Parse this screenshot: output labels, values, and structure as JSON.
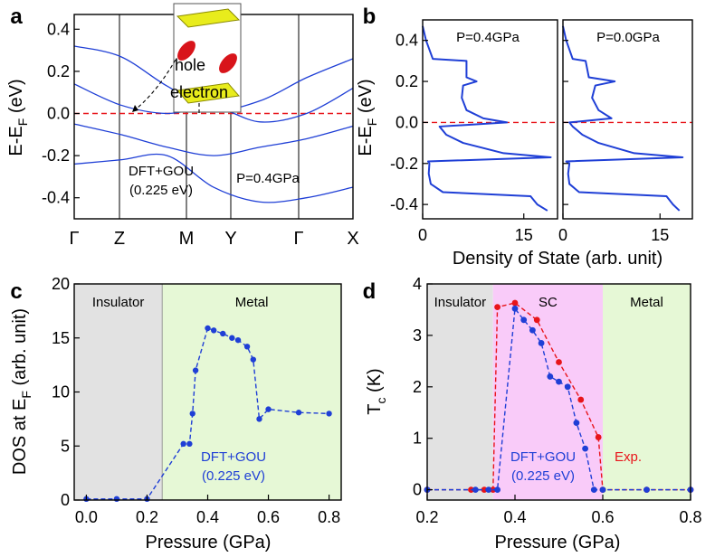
{
  "chart_data": [
    {
      "panel": "a",
      "type": "line",
      "title": "",
      "xlabel": "",
      "ylabel": "E-E_F (eV)",
      "ylabel_main": "E-E",
      "ylabel_sub": "F",
      "ylabel_unit": " (eV)",
      "ylim": [
        -0.5,
        0.47
      ],
      "yticks": [
        "0.4",
        "0.2",
        "0.0",
        "-0.2",
        "-0.4"
      ],
      "ytick_values": [
        0.4,
        0.2,
        0.0,
        -0.2,
        -0.4
      ],
      "kpoints": [
        "Γ",
        "Z",
        "M",
        "Y",
        "Γ",
        "X"
      ],
      "fermi_level": 0.0,
      "annotations": [
        "DFT+GOU",
        "(0.225 eV)",
        "P=0.4GPa"
      ],
      "inset_labels": [
        "hole",
        "electron"
      ],
      "series": [
        {
          "name": "band1",
          "values": [
            0.32,
            0.27,
            0.13,
            0.02,
            0.06,
            0.17,
            0.26
          ]
        },
        {
          "name": "band2",
          "values": [
            0.14,
            0.04,
            0.0,
            0.03,
            -0.04,
            0.0,
            0.12
          ]
        },
        {
          "name": "band3",
          "values": [
            -0.05,
            -0.1,
            -0.16,
            -0.2,
            -0.16,
            -0.12,
            -0.06
          ]
        },
        {
          "name": "band4",
          "values": [
            -0.24,
            -0.22,
            -0.2,
            -0.35,
            -0.42,
            -0.4,
            -0.35
          ]
        }
      ]
    },
    {
      "panel": "b",
      "type": "line",
      "xlabel": "Density of State (arb. unit)",
      "ylabel": "E-E_F (eV)",
      "ylabel_main": "E-E",
      "ylabel_sub": "F",
      "ylabel_unit": " (eV)",
      "xlim": [
        0,
        20
      ],
      "ylim": [
        -0.47,
        0.5
      ],
      "xticks": [
        "0",
        "15"
      ],
      "xtick_values": [
        0,
        15
      ],
      "yticks": [
        "0.4",
        "0.2",
        "0.0",
        "-0.2",
        "-0.4"
      ],
      "ytick_values": [
        0.4,
        0.2,
        0.0,
        -0.2,
        -0.4
      ],
      "fermi_level": 0.0,
      "subpanels": [
        {
          "label": "P=0.4GPa",
          "energy": [
            0.47,
            0.4,
            0.31,
            0.3,
            0.22,
            0.2,
            0.18,
            0.12,
            0.06,
            0.02,
            0.0,
            -0.02,
            -0.06,
            -0.1,
            -0.15,
            -0.17,
            -0.19,
            -0.2,
            -0.25,
            -0.3,
            -0.34,
            -0.36,
            -0.4,
            -0.43
          ],
          "dos": [
            0.0,
            0.5,
            1.5,
            6.5,
            6.5,
            8.0,
            6.0,
            5.8,
            6.5,
            9.0,
            12.5,
            2.5,
            3.5,
            6.0,
            12.0,
            19.0,
            0.8,
            1.0,
            0.9,
            1.2,
            3.0,
            16.0,
            17.0,
            18.5
          ]
        },
        {
          "label": "P=0.0GPa",
          "energy": [
            0.47,
            0.4,
            0.31,
            0.3,
            0.22,
            0.2,
            0.18,
            0.12,
            0.06,
            0.02,
            0.0,
            -0.02,
            -0.06,
            -0.1,
            -0.15,
            -0.17,
            -0.19,
            -0.2,
            -0.25,
            -0.3,
            -0.34,
            -0.36,
            -0.4,
            -0.43
          ],
          "dos": [
            0.0,
            0.5,
            1.5,
            3.5,
            4.0,
            8.0,
            5.0,
            4.5,
            5.5,
            7.5,
            1.0,
            1.5,
            3.0,
            5.5,
            11.0,
            18.5,
            0.5,
            1.0,
            0.8,
            1.0,
            2.5,
            16.0,
            17.0,
            18.0
          ]
        }
      ]
    },
    {
      "panel": "c",
      "type": "line",
      "xlabel": "Pressure (GPa)",
      "ylabel": "DOS at E_F (arb. unit)",
      "ylabel_main": "DOS at E",
      "ylabel_sub": "F",
      "ylabel_unit": " (arb. unit)",
      "xlim": [
        -0.04,
        0.84
      ],
      "ylim": [
        0,
        20
      ],
      "xticks": [
        "0.0",
        "0.2",
        "0.4",
        "0.6",
        "0.8"
      ],
      "xtick_values": [
        0.0,
        0.2,
        0.4,
        0.6,
        0.8
      ],
      "yticks": [
        "0",
        "5",
        "10",
        "15",
        "20"
      ],
      "ytick_values": [
        0,
        5,
        10,
        15,
        20
      ],
      "regions": [
        {
          "label": "Insulator",
          "from": -0.04,
          "to": 0.25,
          "color": "#e2e2e2"
        },
        {
          "label": "Metal",
          "from": 0.25,
          "to": 0.84,
          "color": "#e6f8d6"
        }
      ],
      "annotations": [
        "DFT+GOU",
        "(0.225 eV)"
      ],
      "series": [
        {
          "name": "DFT+GOU (0.225 eV)",
          "color": "#1f3fd6",
          "x": [
            0.0,
            0.1,
            0.2,
            0.32,
            0.34,
            0.35,
            0.36,
            0.4,
            0.42,
            0.45,
            0.48,
            0.5,
            0.53,
            0.55,
            0.57,
            0.6,
            0.7,
            0.8
          ],
          "y": [
            0.1,
            0.1,
            0.1,
            5.2,
            5.2,
            8.0,
            12.0,
            15.9,
            15.7,
            15.4,
            15.0,
            14.8,
            14.2,
            13.0,
            7.5,
            8.4,
            8.1,
            8.0
          ]
        }
      ]
    },
    {
      "panel": "d",
      "type": "line",
      "xlabel": "Pressure (GPa)",
      "ylabel": "T_c (K)",
      "ylabel_main": "T",
      "ylabel_sub": "c",
      "ylabel_unit": " (K)",
      "xlim": [
        0.2,
        0.8
      ],
      "ylim": [
        -0.2,
        4
      ],
      "xticks": [
        "0.2",
        "0.4",
        "0.6",
        "0.8"
      ],
      "xtick_values": [
        0.2,
        0.4,
        0.6,
        0.8
      ],
      "yticks": [
        "0",
        "1",
        "2",
        "3",
        "4"
      ],
      "ytick_values": [
        0,
        1,
        2,
        3,
        4
      ],
      "regions": [
        {
          "label": "Insulator",
          "from": 0.2,
          "to": 0.35,
          "color": "#e2e2e2"
        },
        {
          "label": "SC",
          "from": 0.35,
          "to": 0.6,
          "color": "#f9cbf9"
        },
        {
          "label": "Metal",
          "from": 0.6,
          "to": 0.8,
          "color": "#e6f8d6"
        }
      ],
      "annotations": [
        "DFT+GOU",
        "(0.225 eV)",
        "Exp."
      ],
      "series": [
        {
          "name": "Exp.",
          "color": "#e8141a",
          "x": [
            0.2,
            0.3,
            0.33,
            0.35,
            0.36,
            0.4,
            0.45,
            0.5,
            0.55,
            0.59,
            0.6,
            0.7,
            0.8
          ],
          "y": [
            0.0,
            0.0,
            0.0,
            0.0,
            3.55,
            3.63,
            3.3,
            2.48,
            1.75,
            1.02,
            0.0,
            0.0,
            0.0
          ]
        },
        {
          "name": "DFT+GOU (0.225 eV)",
          "color": "#1f3fd6",
          "x": [
            0.2,
            0.31,
            0.34,
            0.36,
            0.4,
            0.42,
            0.44,
            0.46,
            0.48,
            0.5,
            0.52,
            0.54,
            0.56,
            0.58,
            0.6,
            0.7,
            0.8
          ],
          "y": [
            0.0,
            0.0,
            0.0,
            0.0,
            3.52,
            3.3,
            3.1,
            2.85,
            2.2,
            2.1,
            2.0,
            1.3,
            0.8,
            0.0,
            0.0,
            0.0,
            0.0
          ]
        }
      ]
    }
  ]
}
